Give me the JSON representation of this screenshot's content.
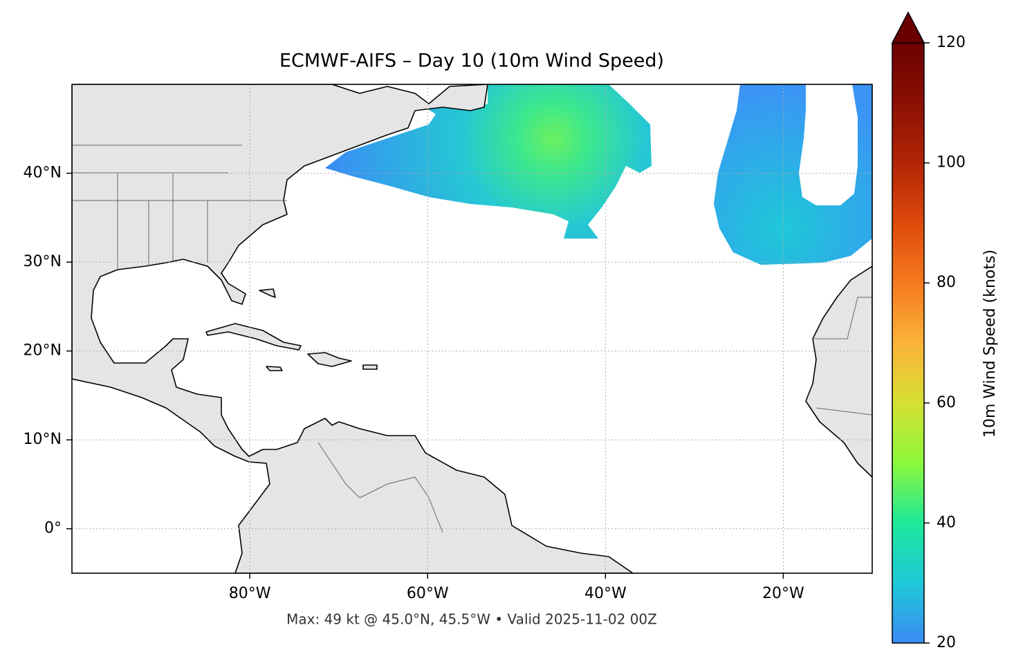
{
  "chart_data": {
    "type": "map",
    "title": "ECMWF-AIFS – Day 10 (10m Wind Speed)",
    "subtitle": "Max: 49 kt @ 45.0°N, 45.5°W • Valid 2025-11-02 00Z",
    "xlim": [
      -100,
      -10
    ],
    "ylim": [
      -5,
      50
    ],
    "xticks": [
      {
        "value": -80,
        "label": "80°W"
      },
      {
        "value": -60,
        "label": "60°W"
      },
      {
        "value": -40,
        "label": "40°W"
      },
      {
        "value": -20,
        "label": "20°W"
      }
    ],
    "yticks": [
      {
        "value": 0,
        "label": "0°"
      },
      {
        "value": 10,
        "label": "10°N"
      },
      {
        "value": 20,
        "label": "20°N"
      },
      {
        "value": 30,
        "label": "30°N"
      },
      {
        "value": 40,
        "label": "40°N"
      }
    ],
    "grid": true,
    "colorbar": {
      "label": "10m Wind Speed (knots)",
      "lim": [
        20,
        120
      ],
      "ticks": [
        20,
        40,
        60,
        80,
        100,
        120
      ],
      "extend": "max",
      "colors": [
        "#3a8cf5",
        "#1fc8d8",
        "#1ee89a",
        "#8cf83c",
        "#d6e033",
        "#fbb239",
        "#f57a1e",
        "#dd4a0c",
        "#b22506",
        "#8c1003",
        "#6b0000"
      ]
    }
  }
}
